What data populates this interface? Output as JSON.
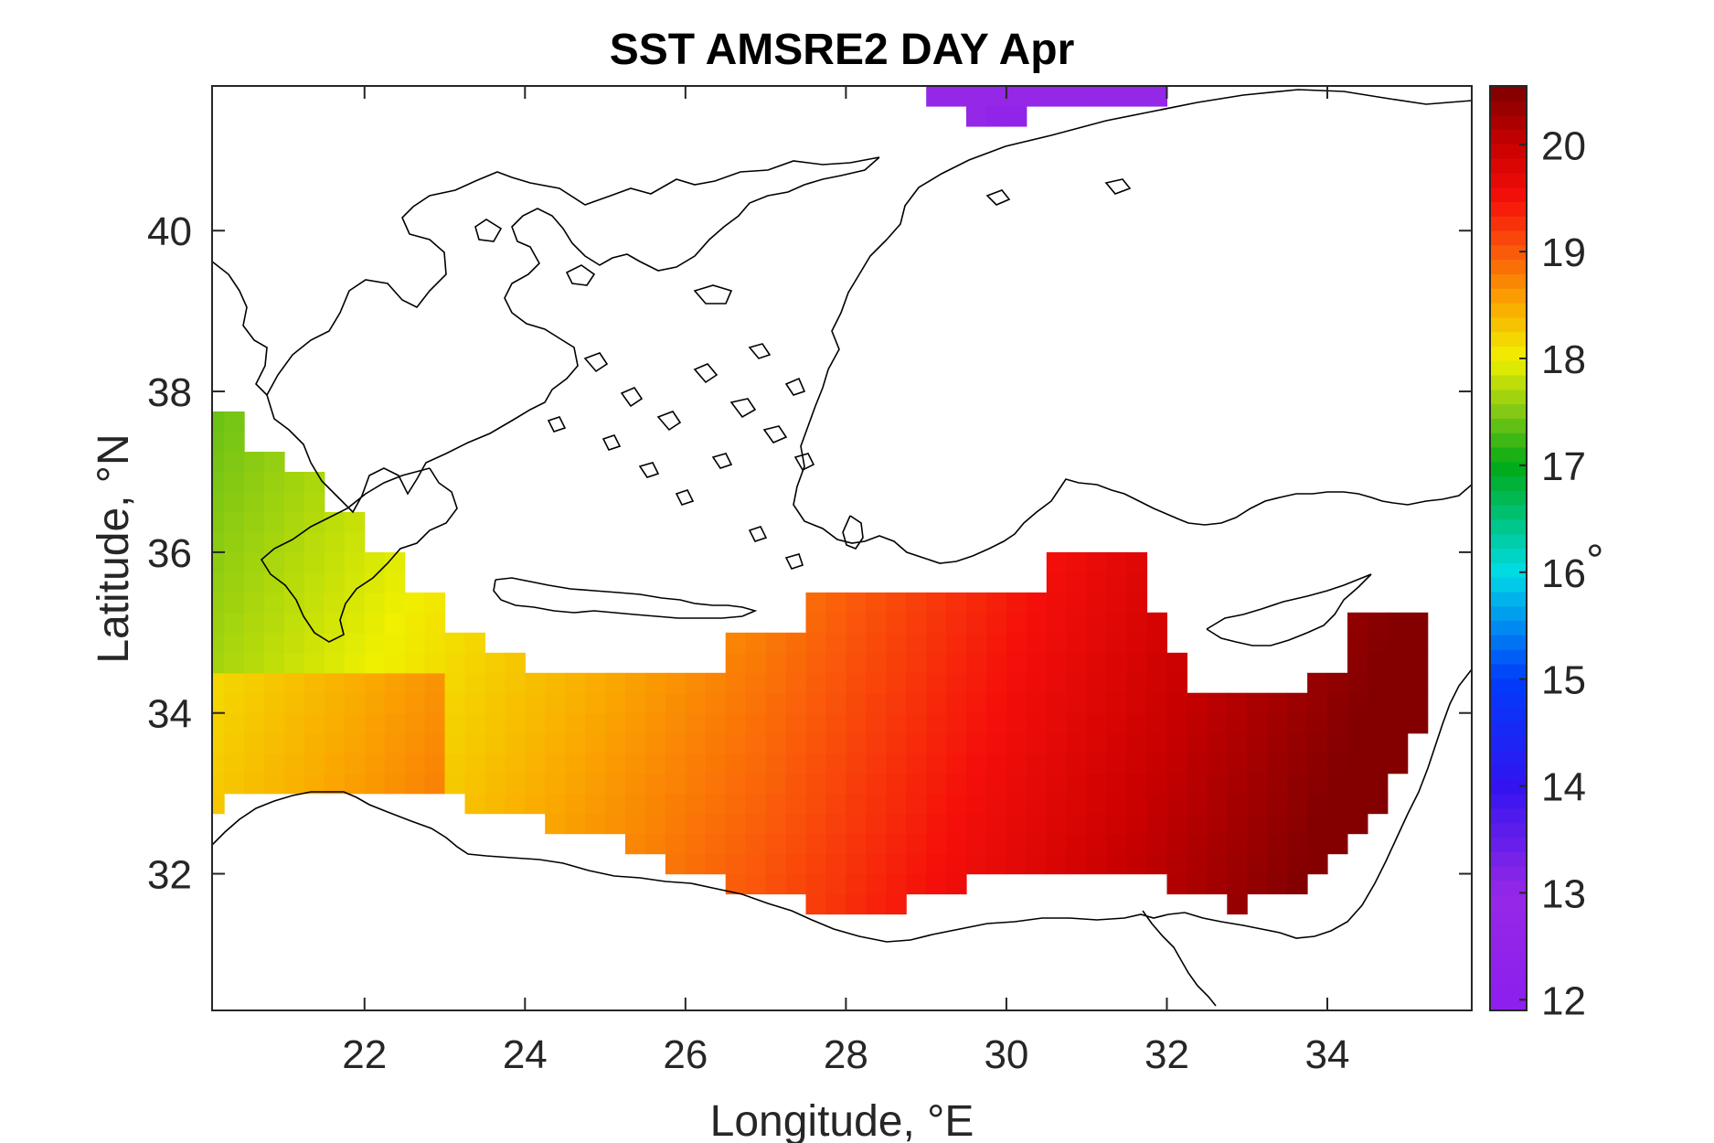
{
  "chart_data": {
    "type": "heatmap",
    "title": "SST AMSRE2 DAY Apr",
    "xlabel": "Longitude, °E",
    "ylabel": "Latitude, °N",
    "xlim": [
      20.1,
      35.8
    ],
    "ylim": [
      30.3,
      41.8
    ],
    "xticks": [
      22,
      24,
      26,
      28,
      30,
      32,
      34
    ],
    "yticks": [
      32,
      34,
      36,
      38,
      40
    ],
    "colorbar": {
      "label": "°",
      "range": [
        11.9,
        20.55
      ],
      "ticks": [
        12,
        13,
        14,
        15,
        16,
        17,
        18,
        19,
        20
      ]
    },
    "grid_resolution_deg": 0.25,
    "field_description": "Sea surface temperature over the eastern Mediterranean; ~17.5–18 in the west near 21°E, ~18.5 around 24–26°E, ~19–19.5 near 28–31°E, ~20–20.5 in the Levantine basin east of 33°E; a small patch of ~12.5 at 41.7°N near 29.5–31.5°E",
    "grid_on": false,
    "legend": "colorbar right"
  }
}
